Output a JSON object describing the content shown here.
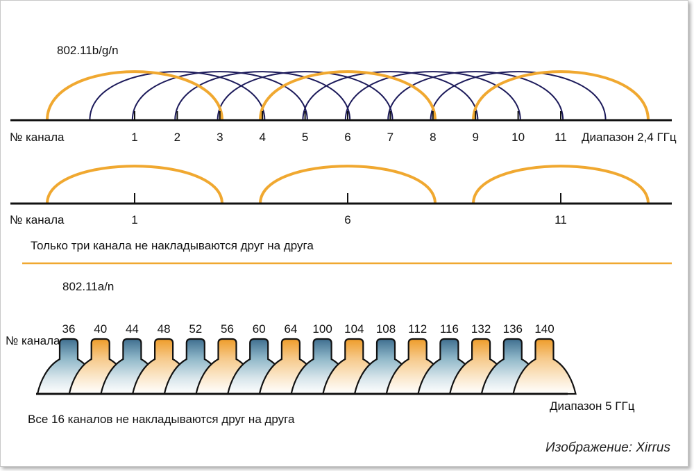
{
  "section_bg": {
    "title": "802.11b/g/n",
    "channel_label": "№ канала",
    "band_label": "Диапазон 2,4 ГГц",
    "channels": [
      "1",
      "2",
      "3",
      "4",
      "5",
      "6",
      "7",
      "8",
      "9",
      "10",
      "11"
    ],
    "non_overlap_channels": [
      "1",
      "6",
      "11"
    ],
    "note": "Только три канала не накладываются друг на друга"
  },
  "section_a": {
    "title": "802.11a/n",
    "channel_label": "№ канала",
    "band_label": "Диапазон 5 ГГц",
    "channels": [
      "36",
      "40",
      "44",
      "48",
      "52",
      "56",
      "60",
      "64",
      "100",
      "104",
      "108",
      "112",
      "116",
      "132",
      "136",
      "140"
    ],
    "note": "Все 16 каналов не накладываются друг на друга"
  },
  "credit": "Изображение: Xirrus",
  "colors": {
    "orange": "#f0a830",
    "navy": "#1c1a5a",
    "line": "#111111",
    "blue_top": "#4a7a98",
    "orange_top": "#f0a030"
  }
}
